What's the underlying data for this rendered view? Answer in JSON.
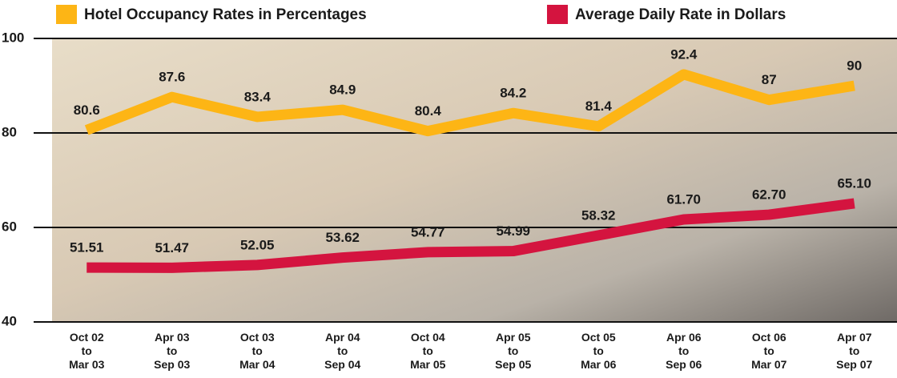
{
  "chart_data": {
    "type": "line",
    "categories": [
      "Oct 02\nto\nMar 03",
      "Apr 03\nto\nSep 03",
      "Oct 03\nto\nMar 04",
      "Apr 04\nto\nSep 04",
      "Oct 04\nto\nMar 05",
      "Apr 05\nto\nSep 05",
      "Oct 05\nto\nMar 06",
      "Apr 06\nto\nSep 06",
      "Oct 06\nto\nMar 07",
      "Apr 07\nto\nSep 07"
    ],
    "series": [
      {
        "name": "Hotel Occupancy Rates in Percentages",
        "color": "#fdb515",
        "values": [
          80.6,
          87.6,
          83.4,
          84.9,
          80.4,
          84.2,
          81.4,
          92.4,
          87,
          90
        ]
      },
      {
        "name": "Average Daily Rate in Dollars",
        "color": "#d4143f",
        "values": [
          51.51,
          51.47,
          52.05,
          53.62,
          54.77,
          54.99,
          58.32,
          61.7,
          62.7,
          65.1
        ],
        "value_labels": [
          "51.51",
          "51.47",
          "52.05",
          "53.62",
          "54.77",
          "54.99",
          "58.32",
          "61.70",
          "62.70",
          "65.10"
        ]
      }
    ],
    "ylim": [
      40,
      100
    ],
    "yticks": [
      40,
      60,
      80,
      100
    ],
    "grid": true,
    "legend": "top"
  }
}
